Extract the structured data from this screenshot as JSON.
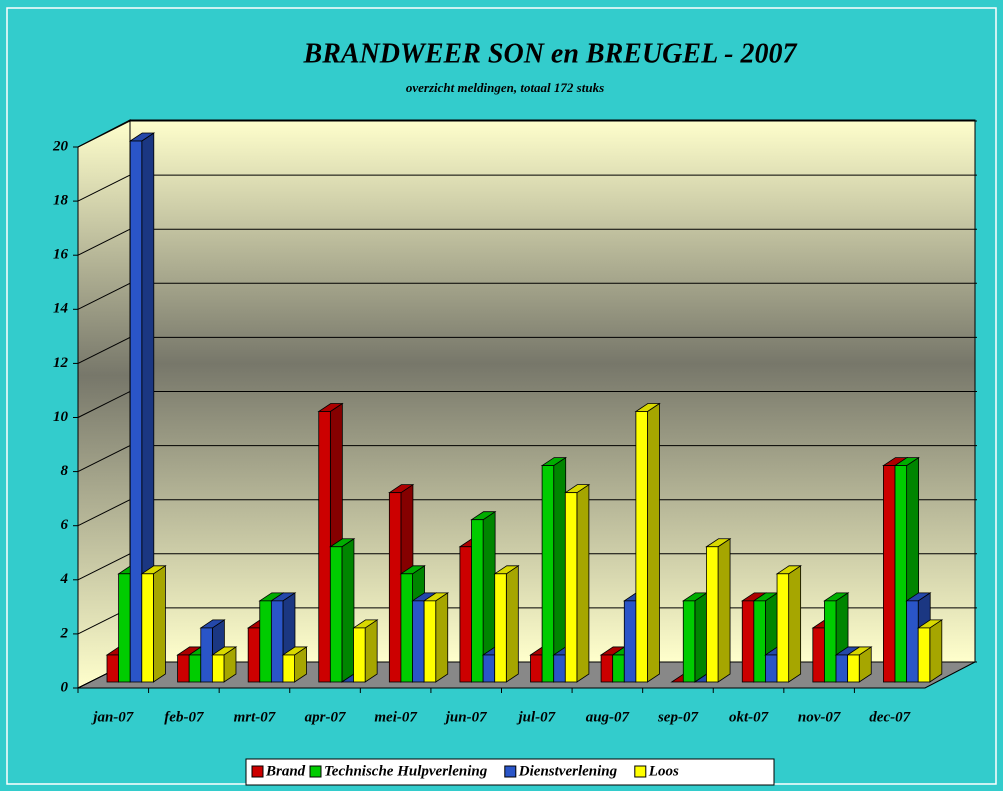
{
  "chart_data": {
    "type": "bar3d",
    "title": "BRANDWEER SON en BREUGEL  -  2007",
    "subtitle": "overzicht meldingen, totaal 172 stuks",
    "categories": [
      "jan-07",
      "feb-07",
      "mrt-07",
      "apr-07",
      "mei-07",
      "jun-07",
      "jul-07",
      "aug-07",
      "sep-07",
      "okt-07",
      "nov-07",
      "dec-07"
    ],
    "series": [
      {
        "name": "Brand",
        "color": "#cc0000",
        "values": [
          1,
          1,
          2,
          10,
          7,
          5,
          1,
          1,
          0,
          3,
          2,
          8
        ]
      },
      {
        "name": "Technische Hulpverlening",
        "color": "#00cc00",
        "values": [
          4,
          1,
          3,
          5,
          4,
          6,
          8,
          1,
          3,
          3,
          3,
          8
        ]
      },
      {
        "name": "Dienstverlening",
        "color": "#2a55c8",
        "values": [
          20,
          2,
          3,
          0,
          3,
          1,
          1,
          3,
          0,
          1,
          1,
          3
        ]
      },
      {
        "name": "Loos",
        "color": "#ffff00",
        "values": [
          4,
          1,
          1,
          2,
          3,
          4,
          7,
          10,
          5,
          4,
          1,
          2
        ]
      }
    ],
    "ylim": [
      0,
      20
    ],
    "yticks": [
      0,
      2,
      4,
      6,
      8,
      10,
      12,
      14,
      16,
      18,
      20
    ],
    "grid": true,
    "legend": "bottom"
  }
}
